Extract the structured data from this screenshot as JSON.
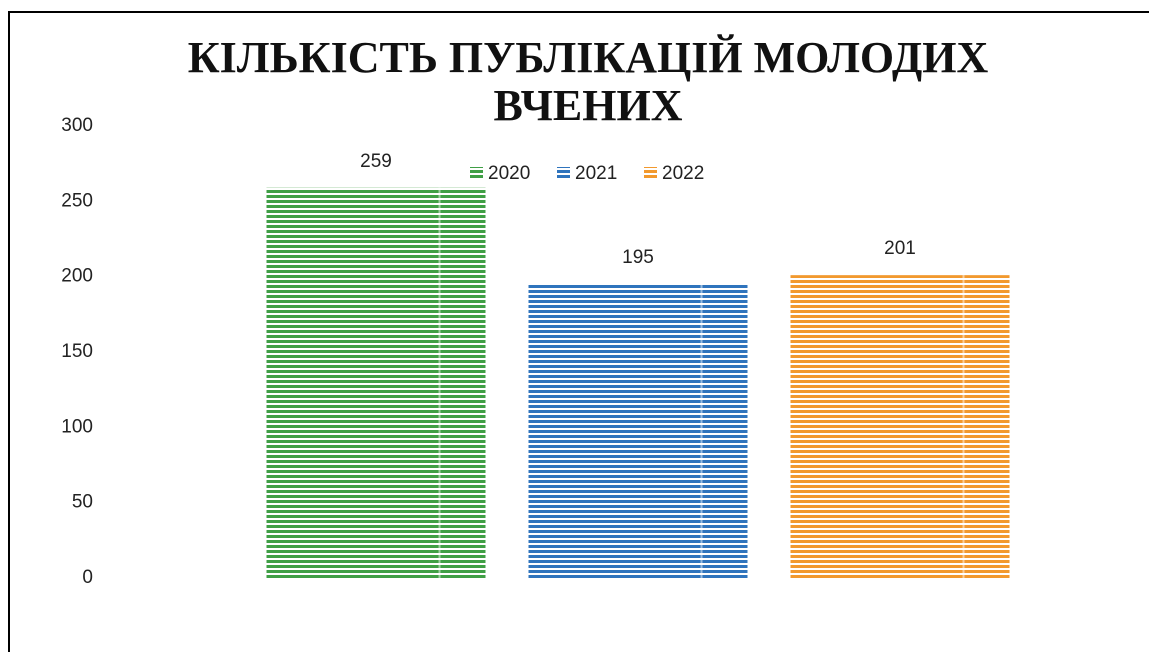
{
  "chart_data": {
    "type": "bar",
    "title_lines": [
      "КІЛЬКІСТЬ ПУБЛІКАЦІЙ МОЛОДИХ",
      "ВЧЕНИХ"
    ],
    "categories": [
      null
    ],
    "series": [
      {
        "name": "2020",
        "color": "#3f9f45",
        "values": [
          259
        ]
      },
      {
        "name": "2021",
        "color": "#2f74bd",
        "values": [
          195
        ]
      },
      {
        "name": "2022",
        "color": "#f2992e",
        "values": [
          201
        ]
      }
    ],
    "ylim": [
      0,
      300
    ],
    "yticks": [
      0,
      50,
      100,
      150,
      200,
      250,
      300
    ],
    "grid": false,
    "legend": "top",
    "data_labels": true
  }
}
